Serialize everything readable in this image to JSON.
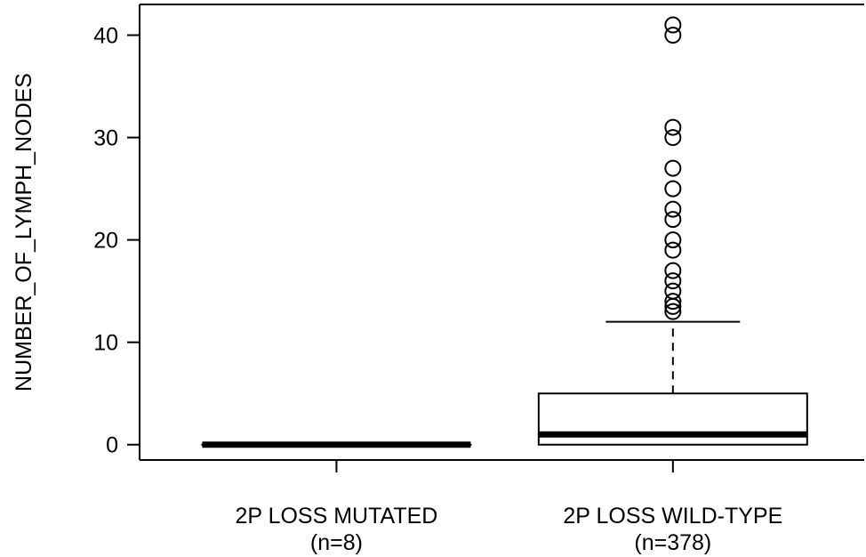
{
  "chart_data": {
    "type": "boxplot",
    "title": "",
    "xlabel": "",
    "ylabel": "NUMBER_OF_LYMPH_NODES",
    "ylim": [
      -1.5,
      43
    ],
    "yticks": [
      0,
      10,
      20,
      30,
      40
    ],
    "grid": false,
    "categories": [
      {
        "name": "2P LOSS MUTATED",
        "n_label": "(n=8)"
      },
      {
        "name": "2P LOSS WILD-TYPE",
        "n_label": "(n=378)"
      }
    ],
    "series": [
      {
        "category": "2P LOSS MUTATED",
        "min": 0,
        "q1": 0,
        "median": 0,
        "q3": 0,
        "max": 0,
        "outliers": []
      },
      {
        "category": "2P LOSS WILD-TYPE",
        "min": 0,
        "q1": 0,
        "median": 1,
        "q3": 5,
        "max": 12,
        "outliers": [
          13,
          13.5,
          14,
          15,
          16,
          17,
          19,
          20,
          22,
          23,
          25,
          27,
          30,
          31,
          40,
          41
        ]
      }
    ]
  }
}
